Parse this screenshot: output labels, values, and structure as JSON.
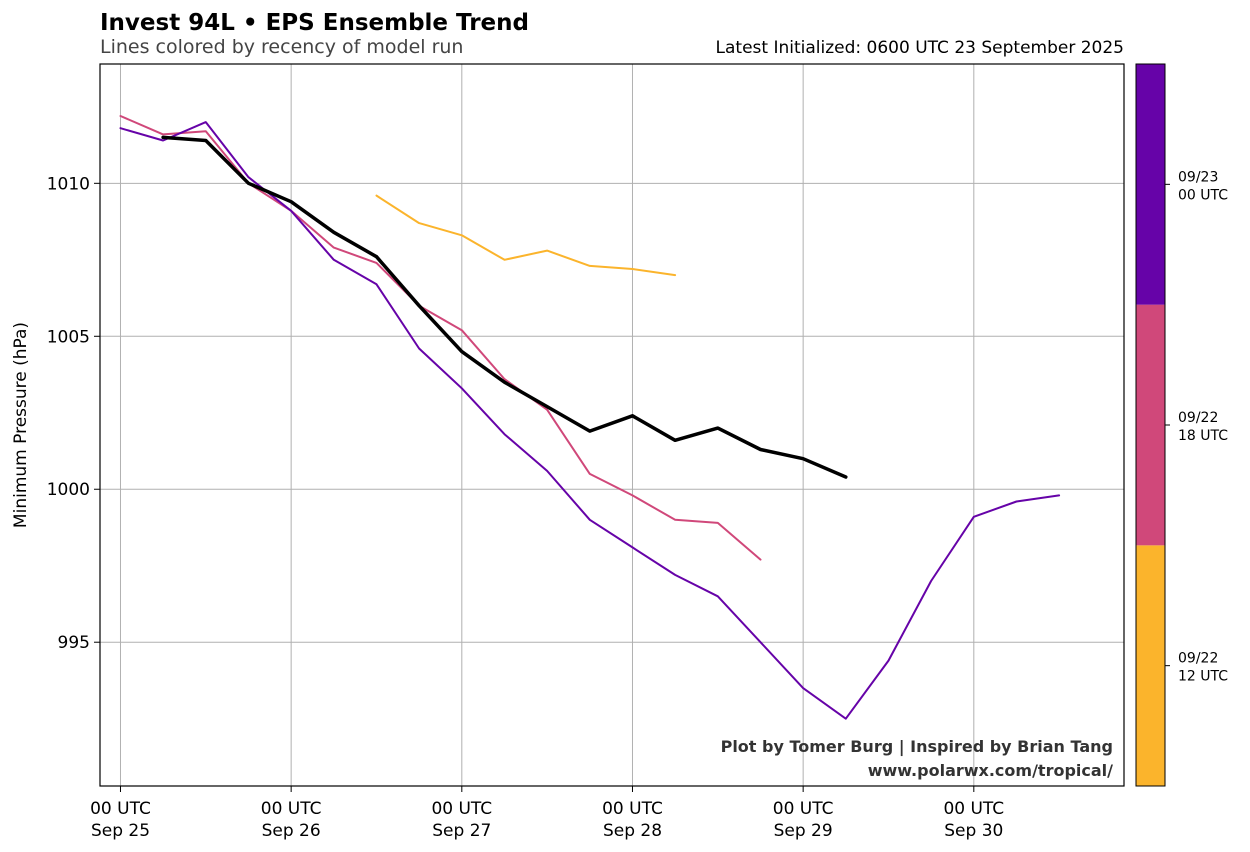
{
  "title": "Invest 94L • EPS Ensemble Trend",
  "subtitle": "Lines colored by recency of model run",
  "initialized": "Latest Initialized: 0600 UTC 23 September 2025",
  "credit_line1": "Plot by Tomer Burg | Inspired by Brian Tang",
  "credit_line2": "www.polarwx.com/tropical/",
  "chart_data": {
    "type": "line",
    "ylabel": "Minimum Pressure (hPa)",
    "ylim": [
      990.3,
      1013.9
    ],
    "xlim": [
      -0.12,
      5.88
    ],
    "grid": true,
    "x_unit": "days from 00 UTC Sep 25 2025",
    "x_ticks": [
      {
        "x": 0,
        "line1": "00 UTC",
        "line2": "Sep 25"
      },
      {
        "x": 1,
        "line1": "00 UTC",
        "line2": "Sep 26"
      },
      {
        "x": 2,
        "line1": "00 UTC",
        "line2": "Sep 27"
      },
      {
        "x": 3,
        "line1": "00 UTC",
        "line2": "Sep 28"
      },
      {
        "x": 4,
        "line1": "00 UTC",
        "line2": "Sep 29"
      },
      {
        "x": 5,
        "line1": "00 UTC",
        "line2": "Sep 30"
      }
    ],
    "y_ticks": [
      995,
      1000,
      1005,
      1010
    ],
    "series": [
      {
        "run": "09/22 12 UTC",
        "color": "#fbb42c",
        "width": 2,
        "points": [
          [
            1.5,
            1009.6
          ],
          [
            1.75,
            1008.7
          ],
          [
            2.0,
            1008.3
          ],
          [
            2.25,
            1007.5
          ],
          [
            2.5,
            1007.8
          ],
          [
            2.75,
            1007.3
          ],
          [
            3.0,
            1007.2
          ],
          [
            3.25,
            1007.0
          ]
        ]
      },
      {
        "run": "09/22 18 UTC",
        "color": "#d0487a",
        "width": 2,
        "points": [
          [
            0,
            1012.2
          ],
          [
            0.25,
            1011.6
          ],
          [
            0.5,
            1011.7
          ],
          [
            0.75,
            1010.0
          ],
          [
            1.0,
            1009.1
          ],
          [
            1.25,
            1007.9
          ],
          [
            1.5,
            1007.4
          ],
          [
            1.75,
            1006.0
          ],
          [
            2.0,
            1005.2
          ],
          [
            2.25,
            1003.6
          ],
          [
            2.5,
            1002.6
          ],
          [
            2.75,
            1000.5
          ],
          [
            3.0,
            999.8
          ],
          [
            3.25,
            999.0
          ],
          [
            3.5,
            998.9
          ],
          [
            3.75,
            997.7
          ]
        ]
      },
      {
        "run": "09/23 00 UTC",
        "color": "#6603a8",
        "width": 2,
        "points": [
          [
            0,
            1011.8
          ],
          [
            0.25,
            1011.4
          ],
          [
            0.5,
            1012.0
          ],
          [
            0.75,
            1010.2
          ],
          [
            1.0,
            1009.1
          ],
          [
            1.25,
            1007.5
          ],
          [
            1.5,
            1006.7
          ],
          [
            1.75,
            1004.6
          ],
          [
            2.0,
            1003.3
          ],
          [
            2.25,
            1001.8
          ],
          [
            2.5,
            1000.6
          ],
          [
            2.75,
            999.0
          ],
          [
            3.0,
            998.1
          ],
          [
            3.25,
            997.2
          ],
          [
            3.5,
            996.5
          ],
          [
            3.75,
            995.0
          ],
          [
            4.0,
            993.5
          ],
          [
            4.25,
            992.5
          ],
          [
            4.5,
            994.4
          ],
          [
            4.75,
            997.0
          ],
          [
            5.0,
            999.1
          ],
          [
            5.25,
            999.6
          ],
          [
            5.5,
            999.8
          ]
        ]
      },
      {
        "run": "ensemble mean",
        "color": "#000000",
        "width": 3.5,
        "points": [
          [
            0.25,
            1011.5
          ],
          [
            0.5,
            1011.4
          ],
          [
            0.75,
            1010.0
          ],
          [
            1.0,
            1009.4
          ],
          [
            1.25,
            1008.4
          ],
          [
            1.5,
            1007.6
          ],
          [
            1.75,
            1006.0
          ],
          [
            2.0,
            1004.5
          ],
          [
            2.25,
            1003.5
          ],
          [
            2.5,
            1002.7
          ],
          [
            2.75,
            1001.9
          ],
          [
            3.0,
            1002.4
          ],
          [
            3.25,
            1001.6
          ],
          [
            3.5,
            1002.0
          ],
          [
            3.75,
            1001.3
          ],
          [
            4.0,
            1001.0
          ],
          [
            4.25,
            1000.4
          ]
        ]
      }
    ],
    "colorbar": {
      "segments": [
        {
          "line1": "09/22",
          "line2": "12 UTC",
          "color": "#fbb42c"
        },
        {
          "line1": "09/22",
          "line2": "18 UTC",
          "color": "#d0487a"
        },
        {
          "line1": "09/23",
          "line2": "00 UTC",
          "color": "#6603a8"
        }
      ]
    }
  }
}
